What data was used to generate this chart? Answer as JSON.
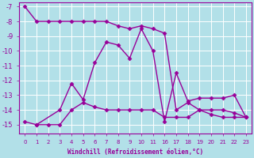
{
  "xlabel": "Windchill (Refroidissement éolien,°C)",
  "background_color": "#b2e0e8",
  "grid_color": "#ffffff",
  "line_color": "#990099",
  "ylim": [
    -15.6,
    -6.7
  ],
  "yticks": [
    -15,
    -14,
    -13,
    -12,
    -11,
    -10,
    -9,
    -8,
    -7
  ],
  "x_positions": [
    0,
    1,
    2,
    3,
    4,
    5,
    6,
    7,
    8,
    9,
    10,
    11,
    12,
    13,
    14,
    15,
    16,
    17,
    18,
    19,
    20,
    21,
    22,
    23
  ],
  "x_tick_positions": [
    0,
    1,
    2,
    3,
    4,
    5,
    6,
    7,
    8,
    9,
    10,
    11,
    16,
    17,
    18,
    19,
    20,
    21,
    22,
    23
  ],
  "series1_x": [
    0,
    1,
    2,
    3,
    4,
    5,
    6,
    7,
    8,
    9,
    10,
    11,
    16,
    17,
    18,
    19,
    20,
    21,
    22,
    23
  ],
  "series1_y": [
    -7.0,
    -8.0,
    -8.0,
    -8.0,
    -8.0,
    -8.0,
    -8.0,
    -8.0,
    -8.3,
    -8.5,
    -8.3,
    -8.5,
    -8.8,
    -14.0,
    -13.5,
    -14.0,
    -14.0,
    -14.0,
    -14.2,
    -14.5
  ],
  "series2_x": [
    1,
    3,
    4,
    5,
    6,
    7,
    8,
    9,
    10,
    11,
    16,
    17,
    18,
    19,
    20,
    21,
    22,
    23
  ],
  "series2_y": [
    -15.0,
    -14.0,
    -12.2,
    -13.3,
    -10.8,
    -9.4,
    -9.6,
    -10.5,
    -8.5,
    -10.0,
    -14.8,
    -11.5,
    -13.4,
    -13.2,
    -13.2,
    -13.2,
    -13.0,
    -14.5
  ],
  "series3_x": [
    0,
    1,
    2,
    3,
    4,
    5,
    6,
    7,
    8,
    9,
    10,
    11,
    16,
    17,
    18,
    19,
    20,
    21,
    22,
    23
  ],
  "series3_y": [
    -14.8,
    -15.0,
    -15.0,
    -15.0,
    -14.0,
    -13.5,
    -13.8,
    -14.0,
    -14.0,
    -14.0,
    -14.0,
    -14.0,
    -14.5,
    -14.5,
    -14.5,
    -14.0,
    -14.3,
    -14.5,
    -14.5,
    -14.5
  ],
  "line_width": 1.0,
  "marker": "D",
  "marker_size": 2.5
}
